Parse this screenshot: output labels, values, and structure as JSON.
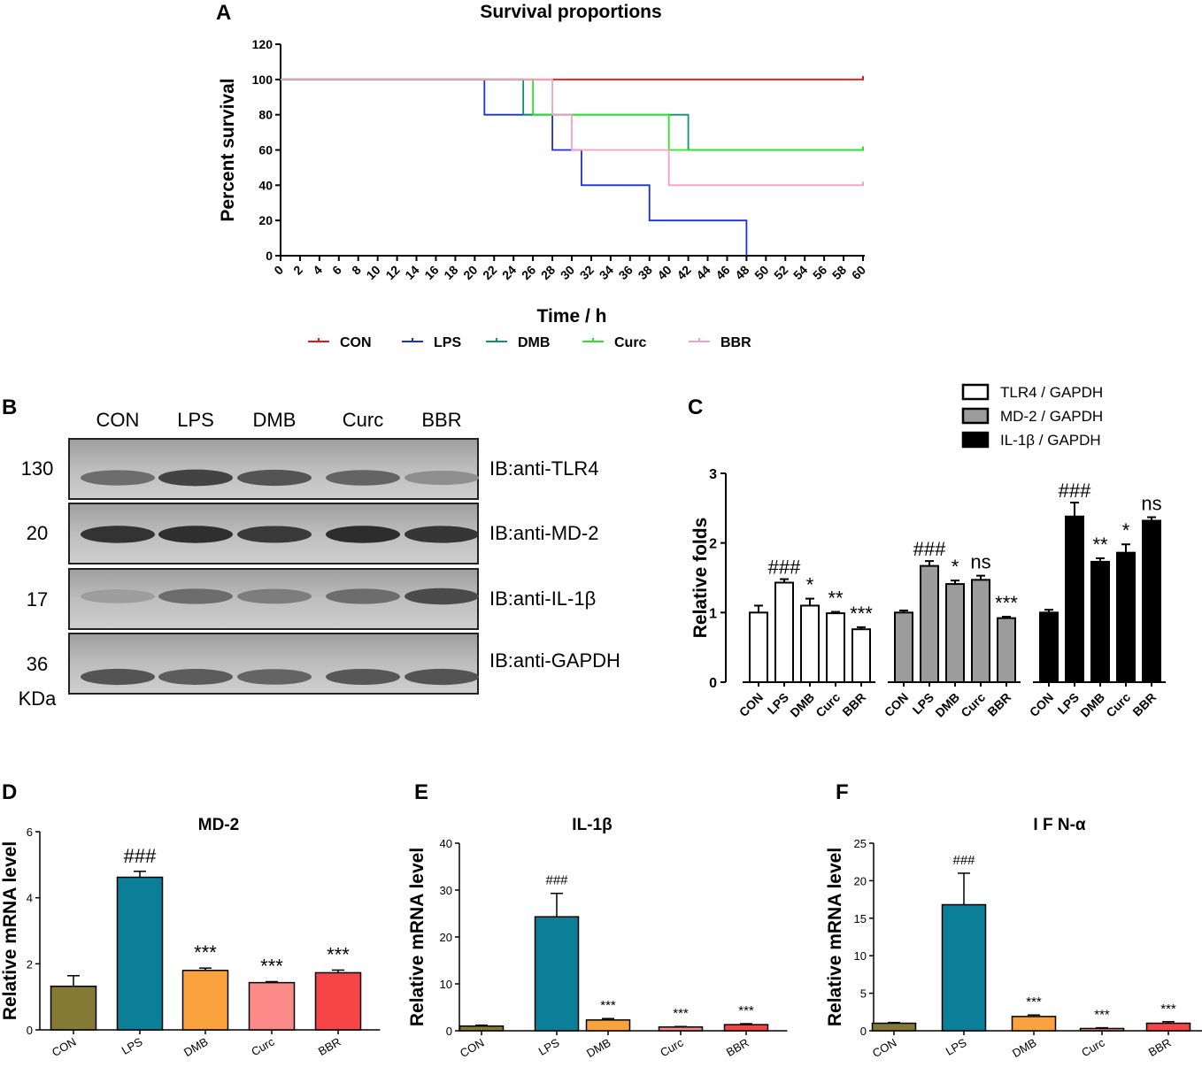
{
  "panels": {
    "A": "A",
    "B": "B",
    "C": "C",
    "D": "D",
    "E": "E",
    "F": "F"
  },
  "colors": {
    "CON": "#e8141b",
    "LPS": "#1c2fd4",
    "DMB": "#11906a",
    "Curc": "#2ee12e",
    "BBR": "#f2a0c4",
    "bar_CON": "#857936",
    "bar_LPS": "#0b7f97",
    "bar_DMB": "#f9a23e",
    "bar_Curc": "#fb8a88",
    "bar_BBR": "#f74547",
    "tlr4": "#ffffff",
    "md2": "#9c9c9c",
    "il1b": "#000000"
  },
  "blot": {
    "lanes": [
      "CON",
      "LPS",
      "DMB",
      "Curc",
      "BBR"
    ],
    "rows": [
      {
        "mw": "130",
        "label": "IB:anti-TLR4",
        "intensity": [
          0.55,
          0.8,
          0.7,
          0.6,
          0.35
        ]
      },
      {
        "mw": "20",
        "label": "IB:anti-MD-2",
        "intensity": [
          0.9,
          0.92,
          0.85,
          0.93,
          0.88
        ]
      },
      {
        "mw": "17",
        "label": "IB:anti-IL-1β",
        "intensity": [
          0.25,
          0.55,
          0.45,
          0.55,
          0.75
        ]
      },
      {
        "mw": "36",
        "label": "IB:anti-GAPDH",
        "intensity": [
          0.7,
          0.65,
          0.6,
          0.68,
          0.7
        ]
      }
    ],
    "unit": "KDa"
  },
  "chart_data": [
    {
      "panel": "A",
      "type": "line",
      "title": "Survival proportions",
      "xlabel": "Time / h",
      "ylabel": "Percent survival",
      "xlim": [
        0,
        60
      ],
      "ylim": [
        0,
        120
      ],
      "xticks": [
        0,
        2,
        4,
        6,
        8,
        10,
        12,
        14,
        16,
        18,
        20,
        22,
        24,
        26,
        28,
        30,
        32,
        34,
        36,
        38,
        40,
        42,
        44,
        46,
        48,
        50,
        52,
        54,
        56,
        58,
        60
      ],
      "yticks": [
        0,
        20,
        40,
        60,
        80,
        100,
        120
      ],
      "series": [
        {
          "name": "CON",
          "steps": [
            [
              0,
              100
            ],
            [
              60,
              100
            ]
          ]
        },
        {
          "name": "LPS",
          "steps": [
            [
              0,
              100
            ],
            [
              21,
              80
            ],
            [
              28,
              60
            ],
            [
              31,
              40
            ],
            [
              38,
              20
            ],
            [
              48,
              0
            ]
          ]
        },
        {
          "name": "DMB",
          "steps": [
            [
              0,
              100
            ],
            [
              25,
              80
            ],
            [
              42,
              60
            ],
            [
              60,
              60
            ]
          ]
        },
        {
          "name": "Curc",
          "steps": [
            [
              0,
              100
            ],
            [
              26,
              80
            ],
            [
              40,
              60
            ],
            [
              60,
              60
            ]
          ]
        },
        {
          "name": "BBR",
          "steps": [
            [
              0,
              100
            ],
            [
              28,
              80
            ],
            [
              30,
              60
            ],
            [
              40,
              40
            ],
            [
              60,
              40
            ]
          ]
        }
      ]
    },
    {
      "panel": "C",
      "type": "bar",
      "ylabel": "Relative folds",
      "ylim": [
        0,
        3
      ],
      "yticks": [
        0,
        1,
        2,
        3
      ],
      "categories": [
        "CON",
        "LPS",
        "DMB",
        "Curc",
        "BBR"
      ],
      "series": [
        {
          "name": "TLR4 / GAPDH",
          "values": [
            1.0,
            1.43,
            1.1,
            0.99,
            0.76
          ],
          "errors": [
            0.1,
            0.05,
            0.1,
            0.02,
            0.03
          ],
          "marks": [
            "",
            "###",
            "*",
            "**",
            "***"
          ]
        },
        {
          "name": "MD-2 / GAPDH",
          "values": [
            1.0,
            1.67,
            1.41,
            1.47,
            0.92
          ],
          "errors": [
            0.03,
            0.07,
            0.05,
            0.06,
            0.02
          ],
          "marks": [
            "",
            "###",
            "*",
            "ns",
            "***"
          ]
        },
        {
          "name": "IL-1β  / GAPDH",
          "values": [
            1.0,
            2.38,
            1.73,
            1.86,
            2.32
          ],
          "errors": [
            0.04,
            0.2,
            0.05,
            0.12,
            0.05
          ],
          "marks": [
            "",
            "###",
            "**",
            "*",
            "ns"
          ]
        }
      ]
    },
    {
      "panel": "D",
      "type": "bar",
      "title": "MD-2",
      "ylabel": "Relative mRNA level",
      "ylim": [
        0,
        6
      ],
      "yticks": [
        0,
        2,
        4,
        6
      ],
      "categories": [
        "CON",
        "LPS",
        "DMB",
        "Curc",
        "BBR"
      ],
      "values": [
        1.32,
        4.62,
        1.8,
        1.43,
        1.73
      ],
      "errors": [
        0.32,
        0.18,
        0.07,
        0.03,
        0.08
      ],
      "marks": [
        "",
        "###",
        "***",
        "***",
        "***"
      ]
    },
    {
      "panel": "E",
      "type": "bar",
      "title": "IL-1β",
      "ylabel": "Relative mRNA level",
      "ylim": [
        0,
        40
      ],
      "yticks": [
        0,
        10,
        20,
        30,
        40
      ],
      "categories": [
        "CON",
        "LPS",
        "DMB",
        "Curc",
        "BBR"
      ],
      "values": [
        1.0,
        24.3,
        2.3,
        0.8,
        1.3
      ],
      "errors": [
        0.2,
        5.0,
        0.3,
        0.1,
        0.2
      ],
      "marks": [
        "",
        "###",
        "***",
        "***",
        "***"
      ]
    },
    {
      "panel": "F",
      "type": "bar",
      "title": "I F N-α",
      "ylabel": "Relative mRNA level",
      "ylim": [
        0,
        25
      ],
      "yticks": [
        0,
        5,
        10,
        15,
        20,
        25
      ],
      "categories": [
        "CON",
        "LPS",
        "DMB",
        "Curc",
        "BBR"
      ],
      "values": [
        1.0,
        16.8,
        1.9,
        0.3,
        1.0
      ],
      "errors": [
        0.1,
        4.2,
        0.2,
        0.1,
        0.2
      ],
      "marks": [
        "",
        "###",
        "***",
        "***",
        "***"
      ]
    }
  ]
}
